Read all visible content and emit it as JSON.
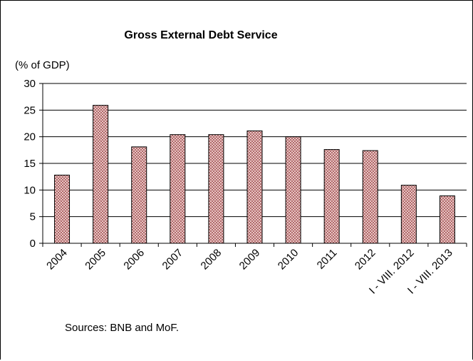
{
  "chart_data": {
    "type": "bar",
    "title": "Gross External Debt Service",
    "ylabel": "(% of GDP)",
    "xlabel": "",
    "categories": [
      "2004",
      "2005",
      "2006",
      "2007",
      "2008",
      "2009",
      "2010",
      "2011",
      "2012",
      "I - VIII. 2012",
      "I - VIII. 2013"
    ],
    "values": [
      12.8,
      25.9,
      18.1,
      20.4,
      20.4,
      21.1,
      20.0,
      17.6,
      17.4,
      10.9,
      8.9
    ],
    "ylim": [
      0,
      30
    ],
    "yticks": [
      0,
      5,
      10,
      15,
      20,
      25,
      30
    ],
    "grid": true,
    "legend": "none",
    "bar_color": "#c98b8b",
    "bar_border": "#000000"
  },
  "source_note": "Sources: BNB and MoF."
}
